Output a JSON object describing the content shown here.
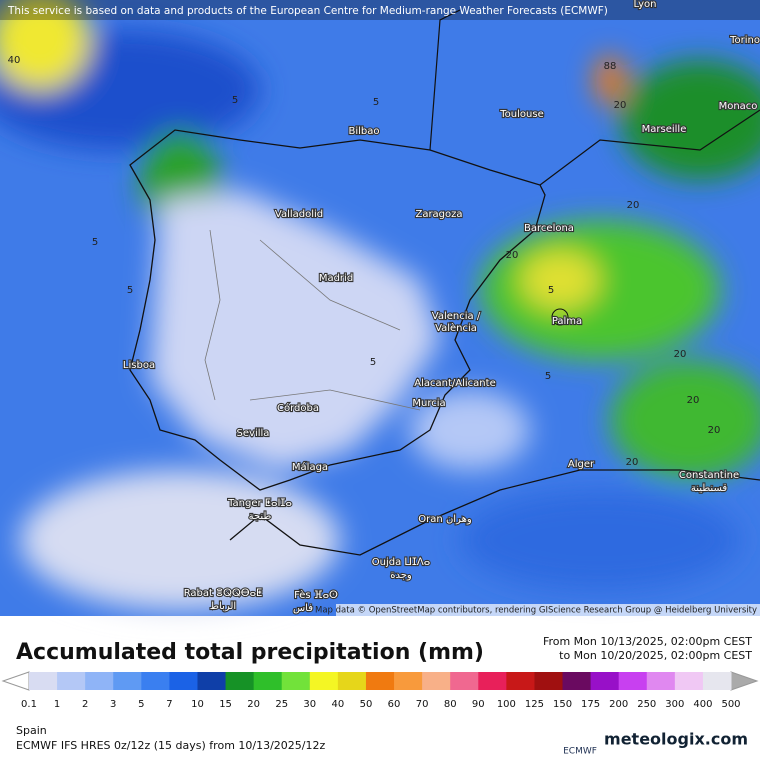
{
  "header": {
    "attribution": "This service is based on data and products of the European Centre for Medium-range Weather Forecasts (ECMWF)"
  },
  "map": {
    "credit": "Map data © OpenStreetMap contributors, rendering GIScience Research Group @ Heidelberg University",
    "cities": [
      "Lyon",
      "Torino",
      "Toulouse",
      "Monaco",
      "Marseille",
      "Bilbao",
      "Valladolid",
      "Zaragoza",
      "Barcelona",
      "Madrid",
      "Valencia /",
      "València",
      "Palma",
      "Lisboa",
      "Alacant/Alicante",
      "Murcia",
      "Córdoba",
      "Sevilla",
      "Alger",
      "Málaga",
      "Constantine",
      "قسنطينة",
      "Tanger ⵟⴰⵏⵊⴰ",
      "طنجة",
      "Oran وهران",
      "Oujda ⵡⵊⴷⴰ",
      "وجدة",
      "Rabat ⴻⵕⵕⴱⴰⵟ",
      "الرباط",
      "Fès ⴼⴰⵙ",
      "فاس"
    ],
    "contour_labels": [
      "40",
      "88",
      "20",
      "5",
      "5",
      "20",
      "20",
      "5",
      "20",
      "5",
      "20",
      "20",
      "5",
      "5",
      "20",
      "5"
    ]
  },
  "legend": {
    "title": "Accumulated total precipitation (mm)",
    "from": "From Mon 10/13/2025, 02:00pm CEST",
    "to": "to Mon 10/20/2025, 02:00pm CEST",
    "labels": [
      "0.1",
      "1",
      "2",
      "3",
      "5",
      "7",
      "10",
      "15",
      "20",
      "25",
      "30",
      "40",
      "50",
      "60",
      "70",
      "80",
      "90",
      "100",
      "125",
      "150",
      "175",
      "200",
      "250",
      "300",
      "400",
      "500"
    ],
    "colors": [
      "#d8dcf2",
      "#b4c8f6",
      "#8fb4f7",
      "#5f9af3",
      "#3a7ff0",
      "#1b62e6",
      "#0f3fa8",
      "#169226",
      "#2fbf2a",
      "#72e23a",
      "#f4f624",
      "#e6d61a",
      "#f07a10",
      "#f89a3c",
      "#f8b088",
      "#f06890",
      "#e8205a",
      "#c81818",
      "#a01010",
      "#6a0a60",
      "#9810c8",
      "#c840f0",
      "#e088f0",
      "#f0c8f4",
      "#e6e6ee"
    ]
  },
  "footer": {
    "region": "Spain",
    "model": "ECMWF IFS HRES 0z/12z (15 days) from 10/13/2025/12z",
    "ecmwf": "ECMWF",
    "brand": "meteologix.com"
  }
}
